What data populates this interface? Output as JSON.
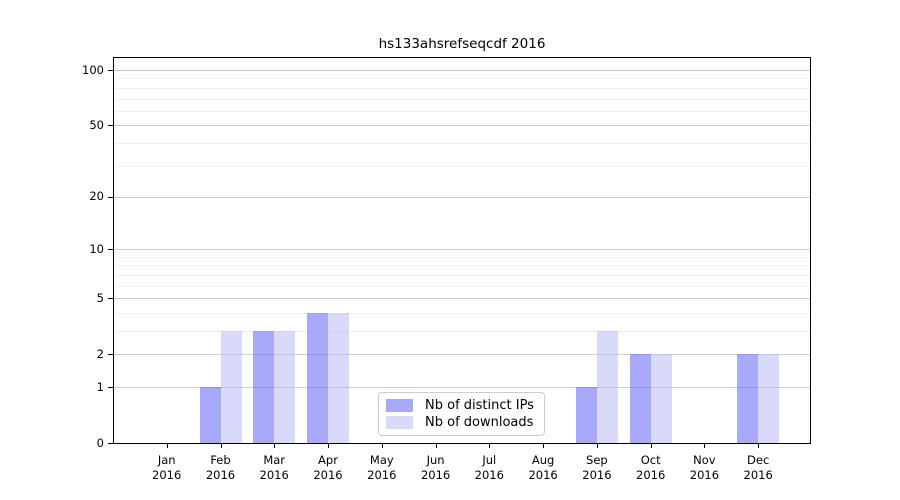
{
  "title": "hs133ahsrefseqcdf 2016",
  "chart_data": {
    "type": "bar",
    "title": "hs133ahsrefseqcdf 2016",
    "categories": [
      "Jan",
      "Feb",
      "Mar",
      "Apr",
      "May",
      "Jun",
      "Jul",
      "Aug",
      "Sep",
      "Oct",
      "Nov",
      "Dec"
    ],
    "x_year_label": "2016",
    "series": [
      {
        "name": "Nb of distinct IPs",
        "color": "rgba(106,106,248,0.58)",
        "solid_color": "#a9a9fb",
        "values": [
          0,
          1,
          3,
          4,
          0,
          0,
          0,
          0,
          1,
          2,
          0,
          2
        ]
      },
      {
        "name": "Nb of downloads",
        "color": "rgba(180,180,246,0.50)",
        "solid_color": "#d9d9fa",
        "values": [
          0,
          3,
          3,
          4,
          0,
          0,
          0,
          0,
          3,
          2,
          0,
          2
        ]
      }
    ],
    "yscale": "log1p",
    "ylim": [
      0,
      116
    ],
    "yticks": [
      0,
      1,
      2,
      5,
      10,
      20,
      50,
      100
    ],
    "minor_gridlines": [
      3,
      4,
      6,
      7,
      8,
      9,
      30,
      40,
      60,
      70,
      80,
      90
    ],
    "grid": "horizontal",
    "legend_position": "lower-center"
  },
  "colors": {
    "background": "#ffffff",
    "axis_spine": "#000000",
    "major_gridline": "#cfcfcf",
    "major_gridline_top": "#c8c8c8",
    "minor_gridline": "#efefef",
    "legend_border": "#cccccc",
    "text": "#000000"
  }
}
